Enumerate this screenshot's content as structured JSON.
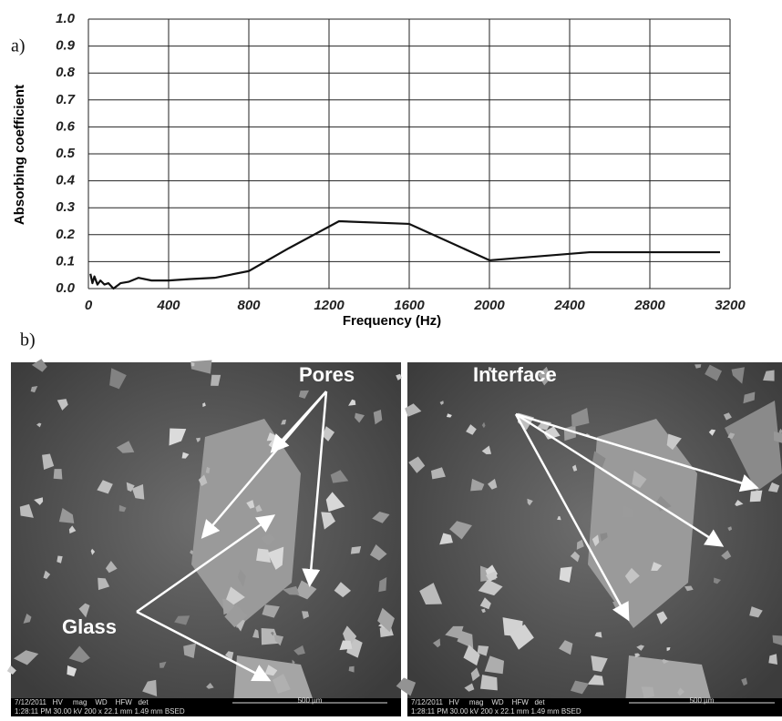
{
  "chart_data": {
    "type": "line",
    "y_label": "Absorbing coefficient",
    "x_label": "Frequency (Hz)",
    "x": [
      10,
      20,
      30,
      45,
      60,
      80,
      100,
      125,
      160,
      200,
      250,
      315,
      400,
      500,
      630,
      800,
      1000,
      1250,
      1600,
      2000,
      2500,
      3150
    ],
    "series": [
      {
        "color": "#111111",
        "values": [
          0.055,
          0.02,
          0.045,
          0.015,
          0.03,
          0.015,
          0.02,
          0.0,
          0.02,
          0.025,
          0.04,
          0.03,
          0.03,
          0.035,
          0.04,
          0.065,
          0.15,
          0.25,
          0.24,
          0.105,
          0.135,
          0.135
        ]
      }
    ],
    "xlim": [
      0,
      3200
    ],
    "xticks": [
      0,
      400,
      800,
      1200,
      1600,
      2000,
      2400,
      2800,
      3200
    ],
    "ylim": [
      0,
      1
    ],
    "yticks": [
      {
        "value": 0,
        "label": "0.0"
      },
      0.1,
      0.2,
      0.3,
      0.4,
      0.5,
      0.6,
      0.7,
      0.8,
      0.9,
      {
        "value": 1,
        "label": "1.0"
      }
    ],
    "grid": true
  },
  "panel_labels": [
    "a)",
    "b)"
  ],
  "micrographs": [
    {
      "labels": [
        "Pores",
        "Glass"
      ],
      "info_top": "7/12/2011   HV     mag    WD    HFW   det",
      "info_bottom": "1:28:11 PM 30.00 kV 200 x 22.1 mm 1.49 mm BSED",
      "scale": "500 µm"
    },
    {
      "labels": [
        "Interface"
      ],
      "info_top": "7/12/2011   HV     mag    WD    HFW   det",
      "info_bottom": "1:28:11 PM 30.00 kV 200 x 22.1 mm 1.49 mm BSED",
      "scale": "500 µm"
    }
  ]
}
